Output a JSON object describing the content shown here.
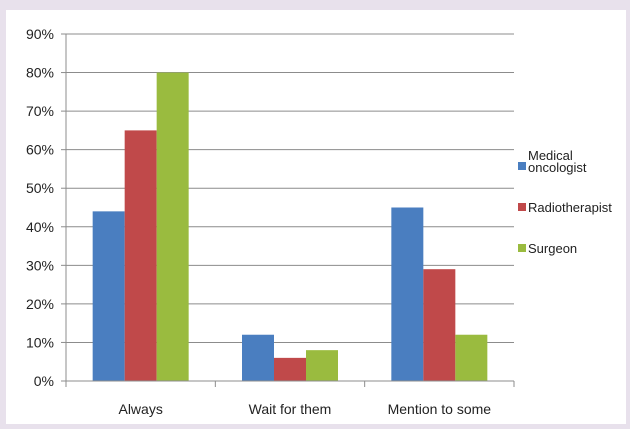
{
  "chart_data": {
    "type": "bar",
    "categories": [
      "Always",
      "Wait for them",
      "Mention to some"
    ],
    "series": [
      {
        "name": "Medical oncologist",
        "color": "#4a7ec0",
        "values": [
          44,
          12,
          45
        ]
      },
      {
        "name": "Radiotherapist",
        "color": "#c0494a",
        "values": [
          65,
          6,
          29
        ]
      },
      {
        "name": "Surgeon",
        "color": "#9abb3f",
        "values": [
          80,
          8,
          12
        ]
      }
    ],
    "ylim": [
      0,
      90
    ],
    "yticks": [
      "0%",
      "10%",
      "20%",
      "30%",
      "40%",
      "50%",
      "60%",
      "70%",
      "80%",
      "90%"
    ],
    "grid": true,
    "legend_position": "right",
    "legend_lines": [
      [
        "Medical",
        "oncologist"
      ],
      [
        "Radiotherapist"
      ],
      [
        "Surgeon"
      ]
    ]
  }
}
